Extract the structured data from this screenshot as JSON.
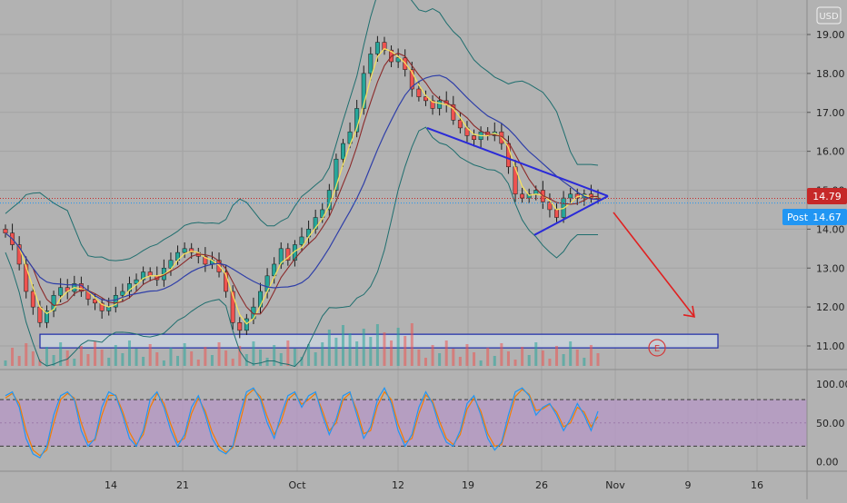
{
  "currency_label": "USD",
  "price_badge": {
    "value": "14.79",
    "color": "#c62828"
  },
  "post_badge": {
    "label": "Post",
    "value": "14.67",
    "color": "#2196f3"
  },
  "earnings_marker": "E",
  "price_ticks": [
    "19.00",
    "18.00",
    "17.00",
    "16.00",
    "15.00",
    "14.00",
    "13.00",
    "12.00",
    "11.00"
  ],
  "osc_ticks": [
    "100.00",
    "50.00",
    "0.00"
  ],
  "x_ticks": [
    "14",
    "21",
    "Oct",
    "12",
    "19",
    "26",
    "Nov",
    "9",
    "16"
  ],
  "colors": {
    "background": "#b2b2b2",
    "grid": "#a3a3a3",
    "candle_up": "#26a69a",
    "candle_down": "#ef5350",
    "bollinger": "#1f6e6e",
    "ma_fast": "#f3e05f",
    "ma_mid": "#8b2a2a",
    "ma_slow": "#2f3fa8",
    "triangle": "#2a2ad8",
    "arrow": "#e02020",
    "osc_band": "#b796c8",
    "stoch_k": "#2196f3",
    "stoch_d": "#f57c00"
  },
  "chart_data": [
    {
      "type": "candlestick",
      "ylim": [
        10.55,
        19.45
      ],
      "x_labels": [
        "14",
        "21",
        "Oct",
        "12",
        "19",
        "26",
        "Nov",
        "9",
        "16"
      ],
      "close_series": [
        13.9,
        13.6,
        13.1,
        12.4,
        12.0,
        11.6,
        11.9,
        12.3,
        12.5,
        12.4,
        12.6,
        12.4,
        12.2,
        12.1,
        11.9,
        12.0,
        12.3,
        12.4,
        12.6,
        12.7,
        12.9,
        12.8,
        12.7,
        13.0,
        13.2,
        13.4,
        13.5,
        13.4,
        13.3,
        13.1,
        13.2,
        12.9,
        12.4,
        11.6,
        11.4,
        11.7,
        12.0,
        12.4,
        12.8,
        13.1,
        13.5,
        13.2,
        13.6,
        13.8,
        14.0,
        14.3,
        14.5,
        15.0,
        15.8,
        16.2,
        16.5,
        17.1,
        18.0,
        18.5,
        18.8,
        18.6,
        18.3,
        18.4,
        18.1,
        17.6,
        17.4,
        17.3,
        17.1,
        17.3,
        17.2,
        16.8,
        16.6,
        16.4,
        16.3,
        16.5,
        16.4,
        16.5,
        16.2,
        15.6,
        14.9,
        14.8,
        14.9,
        15.0,
        14.7,
        14.5,
        14.3,
        14.8,
        14.9,
        14.8,
        14.9,
        14.8,
        14.79
      ],
      "bollinger_bands": true,
      "moving_averages": [
        "ma_fast",
        "ma_mid",
        "ma_slow"
      ],
      "last_price": 14.79,
      "post_market_price": 14.67,
      "annotations": [
        {
          "type": "symmetrical_triangle",
          "upper": [
            [
              16.6,
              "2020-10-15"
            ],
            [
              14.85,
              "2020-10-31"
            ]
          ],
          "lower": [
            [
              13.85,
              "2020-10-27"
            ],
            [
              14.85,
              "2020-10-31"
            ]
          ]
        },
        {
          "type": "projection_arrow",
          "from": 14.85,
          "to": 11.75
        },
        {
          "type": "support_zone",
          "from": 10.95,
          "to": 11.3
        }
      ]
    },
    {
      "type": "line",
      "name": "stochastic",
      "ylim": [
        -10,
        110
      ],
      "bands": [
        20,
        80
      ],
      "k_values": [
        85,
        90,
        70,
        30,
        10,
        5,
        20,
        60,
        85,
        90,
        80,
        40,
        20,
        30,
        70,
        90,
        85,
        60,
        30,
        20,
        40,
        80,
        90,
        70,
        40,
        20,
        35,
        70,
        85,
        60,
        30,
        15,
        10,
        20,
        60,
        90,
        95,
        80,
        50,
        30,
        60,
        85,
        90,
        70,
        85,
        90,
        60,
        35,
        55,
        85,
        90,
        60,
        30,
        45,
        80,
        95,
        75,
        40,
        20,
        35,
        70,
        90,
        75,
        45,
        25,
        20,
        40,
        75,
        85,
        60,
        30,
        15,
        25,
        60,
        90,
        95,
        85,
        60,
        70,
        75,
        60,
        40,
        55,
        75,
        60,
        40,
        65
      ],
      "d_values": [
        82,
        88,
        75,
        40,
        15,
        8,
        15,
        50,
        80,
        88,
        82,
        50,
        25,
        28,
        60,
        85,
        86,
        65,
        38,
        22,
        35,
        70,
        88,
        75,
        48,
        25,
        30,
        62,
        82,
        65,
        38,
        20,
        12,
        18,
        50,
        85,
        93,
        84,
        58,
        35,
        52,
        80,
        88,
        74,
        80,
        88,
        66,
        40,
        50,
        80,
        88,
        66,
        36,
        40,
        72,
        90,
        80,
        48,
        25,
        30,
        62,
        86,
        78,
        52,
        30,
        22,
        35,
        68,
        82,
        65,
        36,
        20,
        22,
        52,
        84,
        93,
        87,
        66,
        68,
        74,
        64,
        45,
        50,
        70,
        64,
        45,
        58
      ]
    }
  ]
}
